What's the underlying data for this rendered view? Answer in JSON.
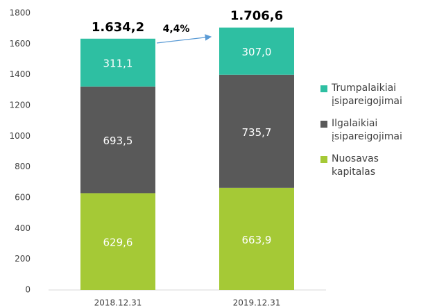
{
  "chart_data": {
    "type": "stacked_bar",
    "categories": [
      "2018.12.31",
      "2019.12.31"
    ],
    "series": [
      {
        "name": "Nuosavas kapitalas",
        "color": "#a5c936",
        "values": [
          629.6,
          663.9
        ],
        "value_labels": [
          "629,6",
          "663,9"
        ]
      },
      {
        "name": "Ilgalaikiai įsipareigojimai",
        "color": "#595959",
        "values": [
          693.5,
          735.7
        ],
        "value_labels": [
          "693,5",
          "735,7"
        ]
      },
      {
        "name": "Trumpalaikiai įsipareigojimai",
        "color": "#2ebfa2",
        "values": [
          311.1,
          307.0
        ],
        "value_labels": [
          "311,1",
          "307,0"
        ]
      }
    ],
    "totals": {
      "values": [
        1634.2,
        1706.6
      ],
      "value_labels": [
        "1.634,2",
        "1.706,6"
      ]
    },
    "annotation": {
      "value": 4.4,
      "label": "4,4%"
    },
    "ylim": [
      0,
      1800
    ],
    "yticks": [
      0,
      200,
      400,
      600,
      800,
      1000,
      1200,
      1400,
      1600,
      1800
    ],
    "grid": false,
    "legend": "right"
  }
}
